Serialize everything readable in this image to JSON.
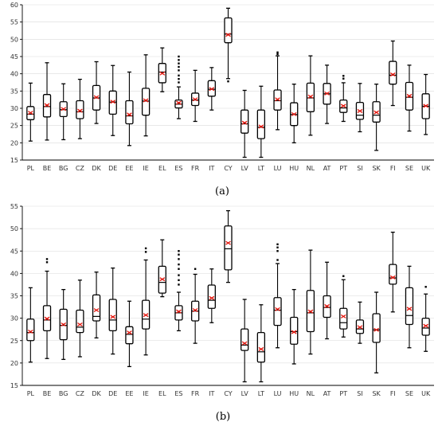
{
  "chart_data": [
    {
      "type": "box",
      "panel_label": "(a)",
      "ylim": [
        15,
        60
      ],
      "yticks": [
        15,
        20,
        25,
        30,
        35,
        40,
        45,
        50,
        55,
        60
      ],
      "categories": [
        "PL",
        "BE",
        "BG",
        "CZ",
        "DK",
        "DE",
        "EE",
        "IE",
        "EL",
        "ES",
        "FR",
        "IT",
        "CY",
        "LV",
        "LT",
        "LU",
        "HU",
        "NL",
        "AT",
        "PT",
        "SI",
        "SK",
        "FI",
        "SE",
        "UK"
      ],
      "series": [
        {
          "cat": "PL",
          "min": 20.5,
          "q1": 26.7,
          "median": 28.3,
          "q3": 30.5,
          "max": 37.3,
          "mean": 28.7,
          "outliers": []
        },
        {
          "cat": "BE",
          "min": 20.8,
          "q1": 27.5,
          "median": 30.5,
          "q3": 34.0,
          "max": 43.2,
          "mean": 30.9,
          "outliers": []
        },
        {
          "cat": "BG",
          "min": 20.9,
          "q1": 27.6,
          "median": 29.6,
          "q3": 31.9,
          "max": 37.1,
          "mean": 29.8,
          "outliers": []
        },
        {
          "cat": "CZ",
          "min": 21.2,
          "q1": 27.0,
          "median": 29.0,
          "q3": 32.2,
          "max": 38.4,
          "mean": 29.3,
          "outliers": []
        },
        {
          "cat": "DK",
          "min": 25.6,
          "q1": 29.5,
          "median": 33.0,
          "q3": 36.6,
          "max": 43.5,
          "mean": 33.2,
          "outliers": []
        },
        {
          "cat": "DE",
          "min": 22.1,
          "q1": 28.3,
          "median": 31.8,
          "q3": 35.0,
          "max": 42.4,
          "mean": 31.9,
          "outliers": []
        },
        {
          "cat": "EE",
          "min": 19.2,
          "q1": 25.5,
          "median": 27.8,
          "q3": 32.2,
          "max": 40.5,
          "mean": 28.2,
          "outliers": []
        },
        {
          "cat": "IE",
          "min": 22.0,
          "q1": 28.0,
          "median": 32.1,
          "q3": 35.8,
          "max": 45.5,
          "mean": 32.3,
          "outliers": []
        },
        {
          "cat": "EL",
          "min": 34.8,
          "q1": 37.4,
          "median": 40.5,
          "q3": 43.0,
          "max": 47.5,
          "mean": 40.1,
          "outliers": []
        },
        {
          "cat": "ES",
          "min": 27.0,
          "q1": 30.1,
          "median": 31.2,
          "q3": 32.4,
          "max": 36.2,
          "mean": 31.6,
          "outliers": [
            37.5,
            38.5,
            39.5,
            41.0,
            42.0,
            43.0,
            44.0,
            45.0
          ]
        },
        {
          "cat": "FR",
          "min": 26.2,
          "q1": 30.8,
          "median": 32.4,
          "q3": 34.4,
          "max": 41.0,
          "mean": 32.6,
          "outliers": []
        },
        {
          "cat": "IT",
          "min": 29.5,
          "q1": 33.5,
          "median": 35.5,
          "q3": 38.0,
          "max": 41.8,
          "mean": 35.6,
          "outliers": []
        },
        {
          "cat": "CY",
          "min": 38.6,
          "q1": 49.0,
          "median": 51.5,
          "q3": 56.2,
          "max": 59.0,
          "mean": 51.3,
          "outliers": [
            37.8
          ]
        },
        {
          "cat": "LV",
          "min": 15.8,
          "q1": 22.8,
          "median": 25.5,
          "q3": 29.5,
          "max": 35.2,
          "mean": 25.8,
          "outliers": []
        },
        {
          "cat": "LT",
          "min": 15.8,
          "q1": 21.2,
          "median": 24.5,
          "q3": 29.5,
          "max": 36.4,
          "mean": 24.7,
          "outliers": []
        },
        {
          "cat": "LU",
          "min": 23.8,
          "q1": 29.5,
          "median": 32.2,
          "q3": 35.3,
          "max": 45.2,
          "mean": 32.6,
          "outliers": [
            46.2,
            45.7
          ]
        },
        {
          "cat": "HU",
          "min": 20.0,
          "q1": 25.0,
          "median": 28.2,
          "q3": 31.6,
          "max": 37.0,
          "mean": 28.3,
          "outliers": []
        },
        {
          "cat": "NL",
          "min": 22.2,
          "q1": 29.0,
          "median": 33.0,
          "q3": 37.3,
          "max": 45.2,
          "mean": 33.4,
          "outliers": []
        },
        {
          "cat": "AT",
          "min": 25.6,
          "q1": 31.2,
          "median": 34.2,
          "q3": 37.2,
          "max": 42.5,
          "mean": 34.3,
          "outliers": []
        },
        {
          "cat": "PT",
          "min": 26.2,
          "q1": 28.8,
          "median": 30.1,
          "q3": 32.4,
          "max": 37.4,
          "mean": 30.7,
          "outliers": [
            39.4,
            38.6
          ]
        },
        {
          "cat": "SI",
          "min": 23.2,
          "q1": 26.8,
          "median": 28.0,
          "q3": 31.7,
          "max": 37.2,
          "mean": 29.2,
          "outliers": []
        },
        {
          "cat": "SK",
          "min": 17.8,
          "q1": 26.0,
          "median": 28.0,
          "q3": 31.9,
          "max": 37.0,
          "mean": 28.8,
          "outliers": []
        },
        {
          "cat": "FI",
          "min": 30.8,
          "q1": 37.0,
          "median": 39.6,
          "q3": 43.6,
          "max": 49.5,
          "mean": 39.8,
          "outliers": []
        },
        {
          "cat": "SE",
          "min": 23.4,
          "q1": 29.5,
          "median": 33.2,
          "q3": 37.5,
          "max": 42.5,
          "mean": 33.6,
          "outliers": []
        },
        {
          "cat": "UK",
          "min": 22.4,
          "q1": 27.0,
          "median": 30.6,
          "q3": 34.2,
          "max": 39.8,
          "mean": 30.7,
          "outliers": []
        }
      ]
    },
    {
      "type": "box",
      "panel_label": "(b)",
      "ylim": [
        15,
        55
      ],
      "yticks": [
        15,
        20,
        25,
        30,
        35,
        40,
        45,
        50,
        55
      ],
      "categories": [
        "PL",
        "BE",
        "BG",
        "CZ",
        "DK",
        "DE",
        "EE",
        "IE",
        "EL",
        "ES",
        "FR",
        "IT",
        "CY",
        "LV",
        "LT",
        "LU",
        "HU",
        "NL",
        "AT",
        "PT",
        "SI",
        "SK",
        "FI",
        "SE",
        "UK"
      ],
      "series": [
        {
          "cat": "PL",
          "min": 20.2,
          "q1": 25.0,
          "median": 26.8,
          "q3": 29.8,
          "max": 36.8,
          "mean": 27.0,
          "outliers": []
        },
        {
          "cat": "BE",
          "min": 21.0,
          "q1": 27.2,
          "median": 29.6,
          "q3": 32.8,
          "max": 40.5,
          "mean": 29.9,
          "outliers": [
            42.5,
            43.2
          ]
        },
        {
          "cat": "BG",
          "min": 20.8,
          "q1": 25.2,
          "median": 28.4,
          "q3": 32.0,
          "max": 36.4,
          "mean": 28.6,
          "outliers": []
        },
        {
          "cat": "CZ",
          "min": 21.4,
          "q1": 26.8,
          "median": 28.0,
          "q3": 31.8,
          "max": 38.5,
          "mean": 28.6,
          "outliers": []
        },
        {
          "cat": "DK",
          "min": 25.6,
          "q1": 29.4,
          "median": 30.4,
          "q3": 35.2,
          "max": 40.3,
          "mean": 31.8,
          "outliers": []
        },
        {
          "cat": "DE",
          "min": 22.0,
          "q1": 27.2,
          "median": 29.6,
          "q3": 34.2,
          "max": 41.2,
          "mean": 30.3,
          "outliers": []
        },
        {
          "cat": "EE",
          "min": 19.2,
          "q1": 24.3,
          "median": 26.4,
          "q3": 28.1,
          "max": 33.8,
          "mean": 26.8,
          "outliers": []
        },
        {
          "cat": "IE",
          "min": 21.8,
          "q1": 27.6,
          "median": 29.8,
          "q3": 34.0,
          "max": 43.0,
          "mean": 30.7,
          "outliers": [
            44.8,
            45.6
          ]
        },
        {
          "cat": "EL",
          "min": 34.8,
          "q1": 35.6,
          "median": 38.0,
          "q3": 41.6,
          "max": 47.5,
          "mean": 38.7,
          "outliers": []
        },
        {
          "cat": "ES",
          "min": 27.2,
          "q1": 29.6,
          "median": 31.2,
          "q3": 32.8,
          "max": 35.8,
          "mean": 31.5,
          "outliers": [
            37.5,
            38.5,
            39.6,
            41.0,
            42.0,
            43.2,
            44.2,
            45.0
          ]
        },
        {
          "cat": "FR",
          "min": 24.4,
          "q1": 29.4,
          "median": 31.6,
          "q3": 33.8,
          "max": 39.8,
          "mean": 31.8,
          "outliers": [
            41.0
          ]
        },
        {
          "cat": "IT",
          "min": 29.0,
          "q1": 32.2,
          "median": 34.0,
          "q3": 37.4,
          "max": 41.0,
          "mean": 34.5,
          "outliers": []
        },
        {
          "cat": "CY",
          "min": 38.0,
          "q1": 40.8,
          "median": 45.5,
          "q3": 50.6,
          "max": 54.0,
          "mean": 46.8,
          "outliers": []
        },
        {
          "cat": "LV",
          "min": 15.8,
          "q1": 22.8,
          "median": 24.0,
          "q3": 27.6,
          "max": 34.2,
          "mean": 24.4,
          "outliers": []
        },
        {
          "cat": "LT",
          "min": 15.8,
          "q1": 20.2,
          "median": 22.5,
          "q3": 26.8,
          "max": 33.0,
          "mean": 23.1,
          "outliers": []
        },
        {
          "cat": "LU",
          "min": 23.4,
          "q1": 28.4,
          "median": 31.8,
          "q3": 34.6,
          "max": 42.2,
          "mean": 32.0,
          "outliers": [
            43.0,
            45.0,
            45.8,
            46.5
          ]
        },
        {
          "cat": "HU",
          "min": 19.8,
          "q1": 24.2,
          "median": 27.0,
          "q3": 30.2,
          "max": 36.4,
          "mean": 26.9,
          "outliers": []
        },
        {
          "cat": "NL",
          "min": 22.0,
          "q1": 27.0,
          "median": 31.2,
          "q3": 36.2,
          "max": 45.2,
          "mean": 31.5,
          "outliers": []
        },
        {
          "cat": "AT",
          "min": 25.4,
          "q1": 30.2,
          "median": 32.4,
          "q3": 35.0,
          "max": 42.5,
          "mean": 32.7,
          "outliers": []
        },
        {
          "cat": "PT",
          "min": 25.8,
          "q1": 27.6,
          "median": 29.0,
          "q3": 32.2,
          "max": 38.6,
          "mean": 30.4,
          "outliers": [
            39.4
          ]
        },
        {
          "cat": "SI",
          "min": 24.4,
          "q1": 26.6,
          "median": 27.6,
          "q3": 29.6,
          "max": 33.6,
          "mean": 28.0,
          "outliers": []
        },
        {
          "cat": "SK",
          "min": 17.8,
          "q1": 24.6,
          "median": 27.4,
          "q3": 31.0,
          "max": 35.8,
          "mean": 27.4,
          "outliers": []
        },
        {
          "cat": "FI",
          "min": 31.4,
          "q1": 37.6,
          "median": 39.0,
          "q3": 42.0,
          "max": 49.2,
          "mean": 39.1,
          "outliers": []
        },
        {
          "cat": "SE",
          "min": 23.4,
          "q1": 28.6,
          "median": 30.6,
          "q3": 36.8,
          "max": 41.6,
          "mean": 32.1,
          "outliers": []
        },
        {
          "cat": "UK",
          "min": 22.6,
          "q1": 26.2,
          "median": 27.8,
          "q3": 30.0,
          "max": 35.4,
          "mean": 28.3,
          "outliers": [
            37.0
          ]
        }
      ]
    }
  ]
}
